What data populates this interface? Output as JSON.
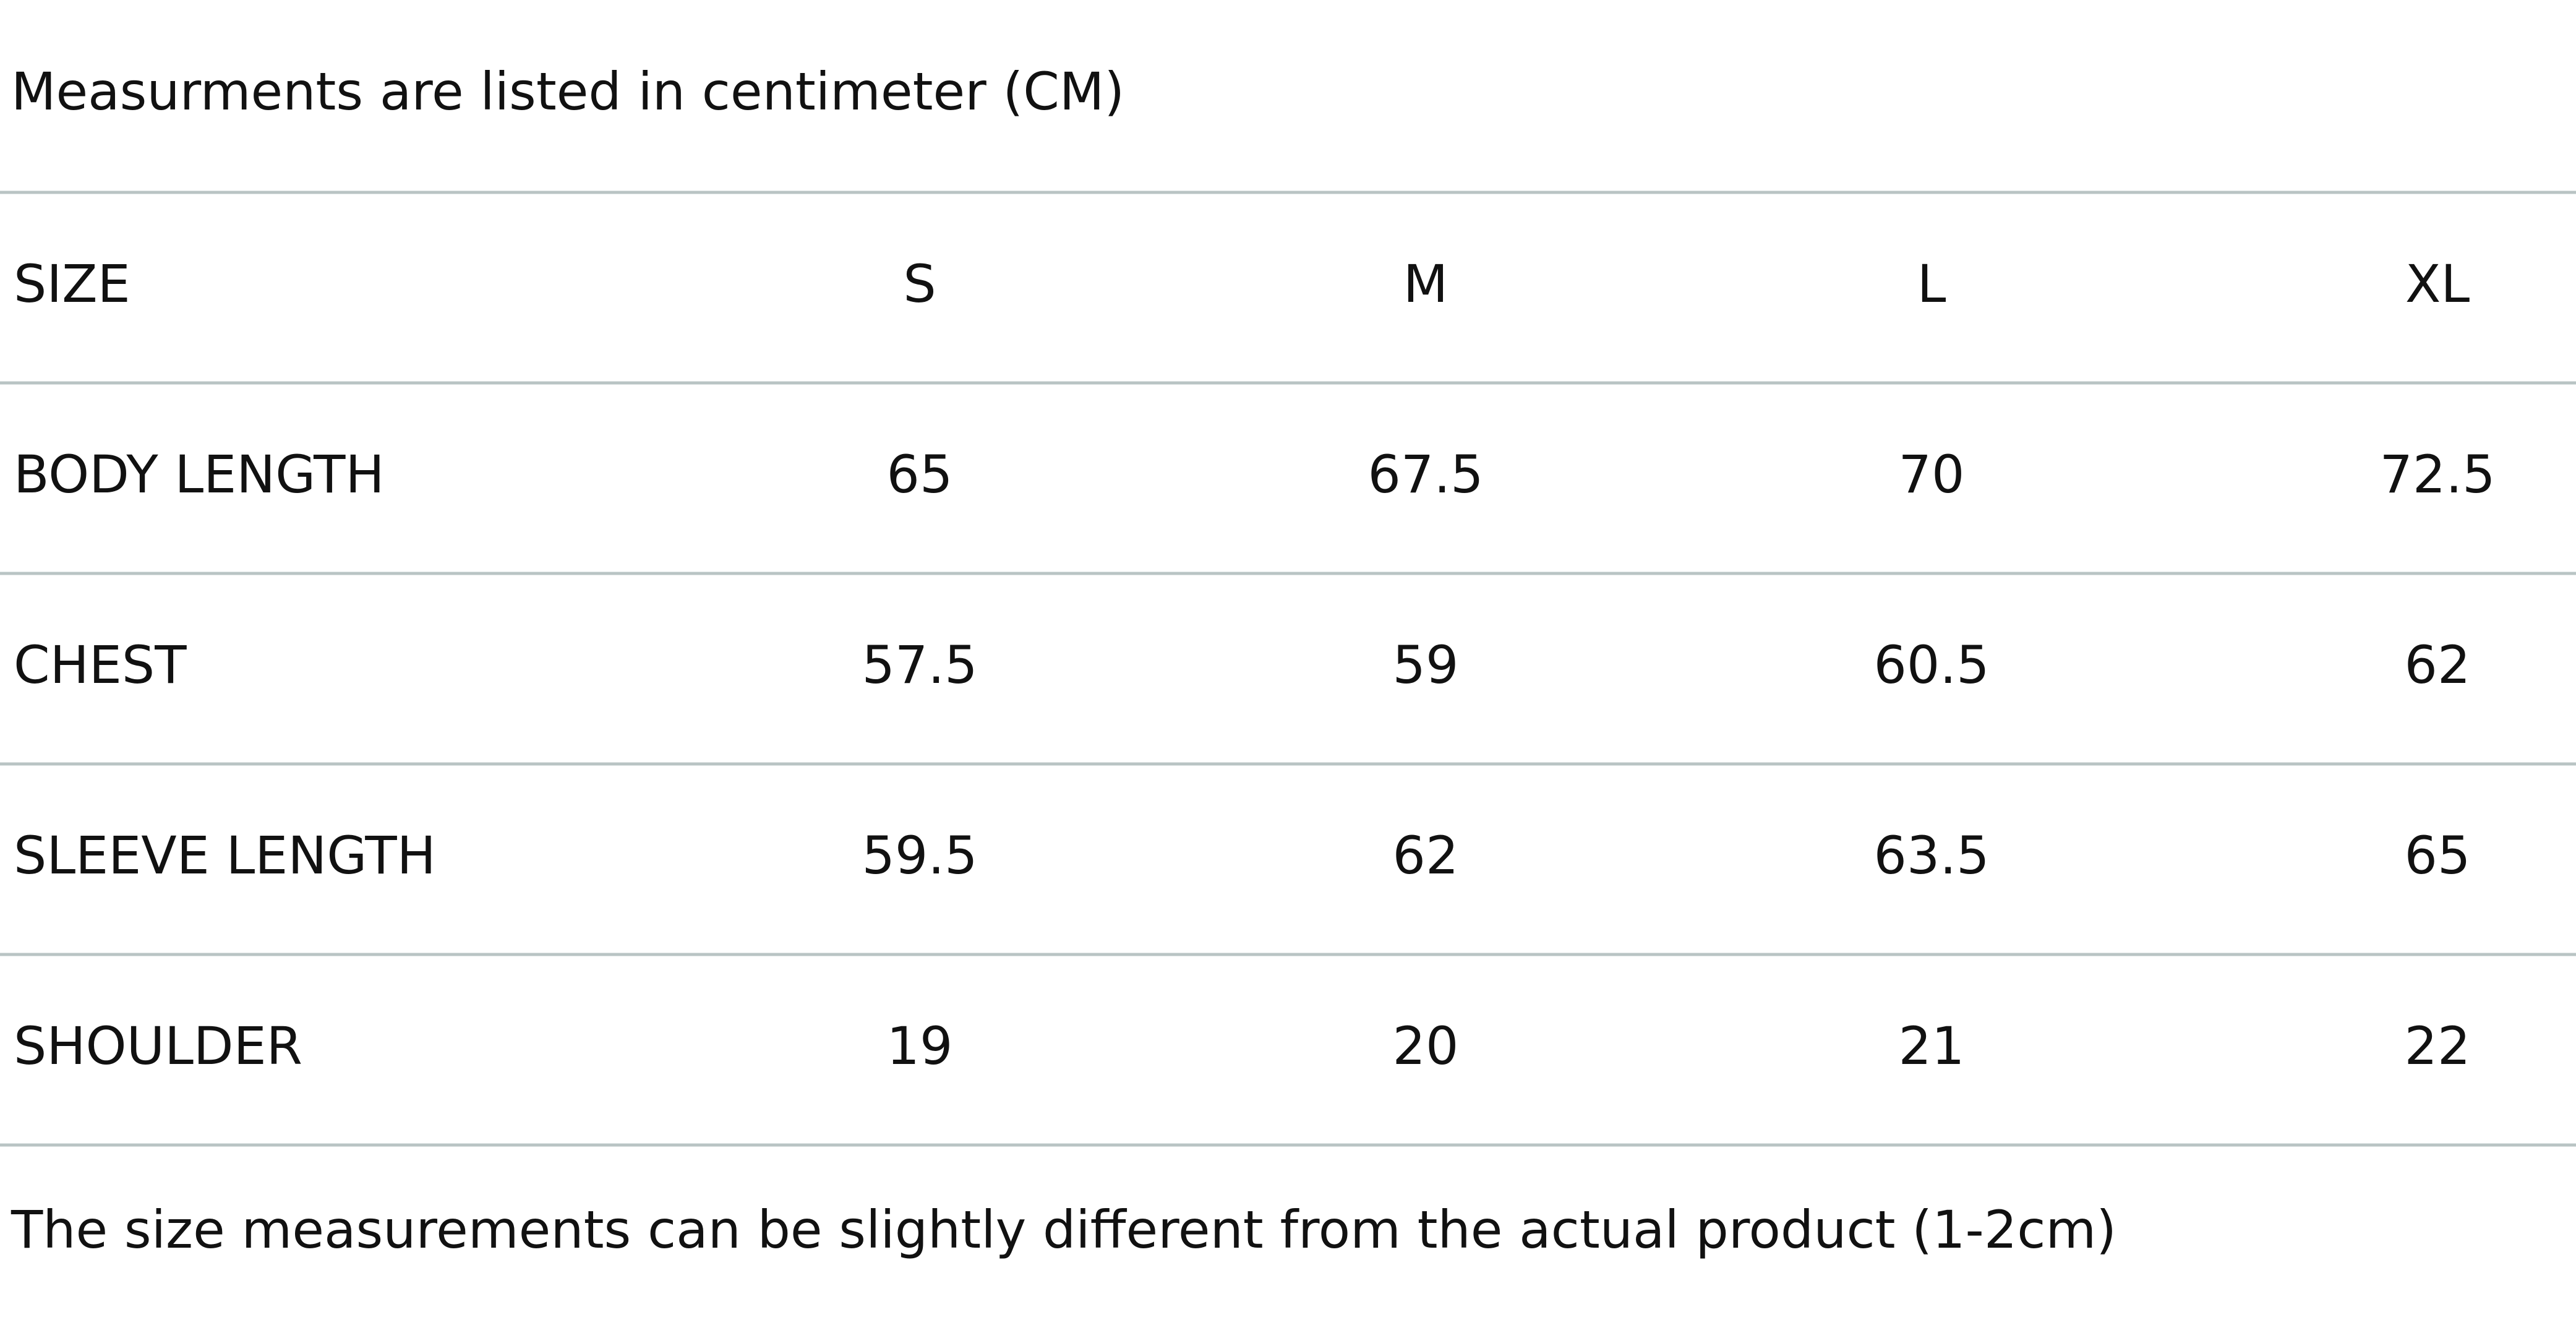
{
  "header": {
    "title": "Measurments are listed in centimeter (CM)"
  },
  "table": {
    "columns": [
      "SIZE",
      "S",
      "M",
      "L",
      "XL"
    ],
    "rows": [
      [
        "BODY LENGTH",
        65,
        67.5,
        70,
        72.5
      ],
      [
        "CHEST",
        57.5,
        59,
        60.5,
        62
      ],
      [
        "SLEEVE LENGTH",
        59.5,
        62,
        63.5,
        65
      ],
      [
        "SHOULDER",
        19,
        20,
        21,
        22
      ]
    ]
  },
  "footer": {
    "note": "The size measurements can be slightly different from the actual product (1-2cm)"
  }
}
